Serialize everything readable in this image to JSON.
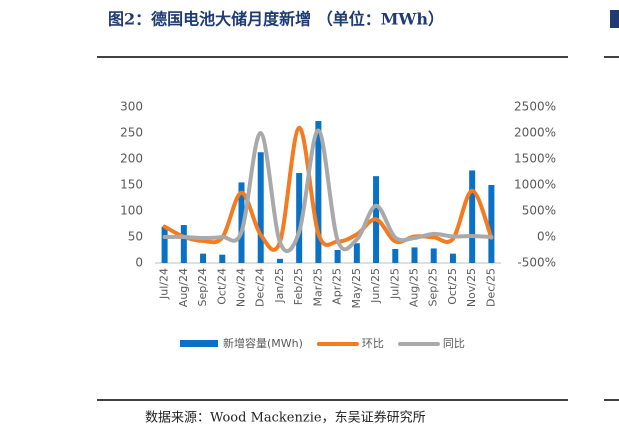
{
  "chart_data": {
    "type": "bar_line",
    "title": "图2：德国电池大储月度新增 （单位：MWh）",
    "source": "数据来源：Wood Mackenzie，东吴证券研究所",
    "categories": [
      "Jul/24",
      "Aug/24",
      "Sep/24",
      "Oct/24",
      "Nov/24",
      "Dec/24",
      "Jan/25",
      "Feb/25",
      "Mar/25",
      "Apr/25",
      "May/25",
      "Jun/25",
      "Jul/25",
      "Aug/25",
      "Sep/25",
      "Oct/25",
      "Nov/25",
      "Dec/25"
    ],
    "series": [
      {
        "name": "新增容量(MWh)",
        "color": "#0a72c6",
        "kind": "bar",
        "values": [
          70,
          73,
          18,
          16,
          155,
          213,
          8,
          173,
          273,
          25,
          38,
          167,
          27,
          30,
          28,
          18,
          178,
          150
        ]
      },
      {
        "name": "环比",
        "color": "#f47b20",
        "kind": "line",
        "axis": "y2",
        "values": [
          200,
          5,
          -75,
          -10,
          850,
          40,
          -95,
          2100,
          60,
          -90,
          50,
          340,
          -85,
          10,
          -5,
          -35,
          890,
          -15
        ]
      },
      {
        "name": "同比",
        "color": "#a9a9a9",
        "kind": "line",
        "axis": "y2",
        "values": [
          0,
          0,
          -20,
          0,
          100,
          2000,
          -100,
          100,
          2050,
          -60,
          -45,
          600,
          -10,
          -20,
          60,
          10,
          20,
          0
        ]
      }
    ],
    "ylim": [
      0,
      300
    ],
    "yticks": [
      0,
      50,
      100,
      150,
      200,
      250,
      300
    ],
    "y2lim": [
      -500,
      2500
    ],
    "y2ticks": [
      {
        "value": -500,
        "label": "-500%"
      },
      {
        "value": 0,
        "label": "0%"
      },
      {
        "value": 500,
        "label": "500%"
      },
      {
        "value": 1000,
        "label": "1000%"
      },
      {
        "value": 1500,
        "label": "1500%"
      },
      {
        "value": 2000,
        "label": "2000%"
      },
      {
        "value": 2500,
        "label": "2500%"
      }
    ]
  }
}
